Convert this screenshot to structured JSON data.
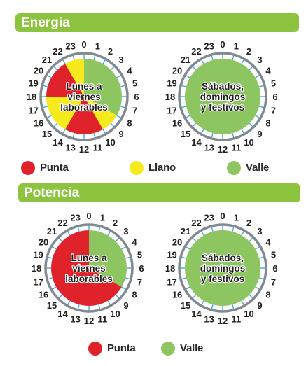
{
  "sections": [
    {
      "title": "Energía",
      "dials": [
        {
          "label_lines": [
            "Lunes a",
            "viernes",
            "laborables"
          ],
          "segments": [
            {
              "from": 0,
              "to": 8,
              "period": "valle"
            },
            {
              "from": 8,
              "to": 10,
              "period": "llano"
            },
            {
              "from": 10,
              "to": 14,
              "period": "punta"
            },
            {
              "from": 14,
              "to": 18,
              "period": "llano"
            },
            {
              "from": 18,
              "to": 22,
              "period": "punta"
            },
            {
              "from": 22,
              "to": 24,
              "period": "llano"
            }
          ]
        },
        {
          "label_lines": [
            "Sábados,",
            "domingos",
            "y festivos"
          ],
          "segments": [
            {
              "from": 0,
              "to": 24,
              "period": "valle"
            }
          ]
        }
      ],
      "legend": [
        {
          "period": "punta",
          "label": "Punta"
        },
        {
          "period": "llano",
          "label": "Llano"
        },
        {
          "period": "valle",
          "label": "Valle"
        }
      ]
    },
    {
      "title": "Potencia",
      "dials": [
        {
          "label_lines": [
            "Lunes a",
            "viernes",
            "laborables"
          ],
          "segments": [
            {
              "from": 0,
              "to": 8,
              "period": "valle"
            },
            {
              "from": 8,
              "to": 24,
              "period": "punta"
            }
          ]
        },
        {
          "label_lines": [
            "Sábados,",
            "domingos",
            "y festivos"
          ],
          "segments": [
            {
              "from": 0,
              "to": 24,
              "period": "valle"
            }
          ]
        }
      ],
      "legend": [
        {
          "period": "punta",
          "label": "Punta"
        },
        {
          "period": "valle",
          "label": "Valle"
        }
      ]
    }
  ],
  "hour_labels": [
    "0",
    "1",
    "2",
    "3",
    "4",
    "5",
    "6",
    "7",
    "8",
    "9",
    "10",
    "11",
    "12",
    "13",
    "14",
    "15",
    "16",
    "17",
    "18",
    "19",
    "20",
    "21",
    "22",
    "23"
  ],
  "colors": {
    "punta": "#e0232b",
    "llano": "#f7ea1c",
    "valle": "#8dc661",
    "banner": "#8dc43f",
    "ring": "#808890",
    "tick": "#45a9dc",
    "hour_text": "#1f1f1f"
  }
}
